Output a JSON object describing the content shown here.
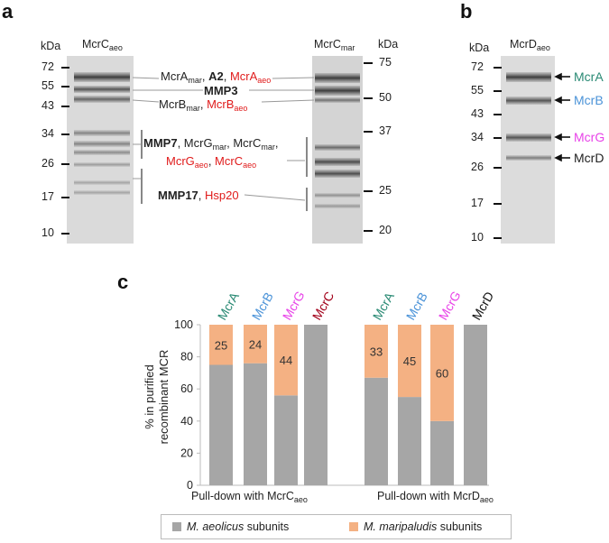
{
  "panel_a": {
    "letter": "a",
    "unit_left": "kDa",
    "unit_right": "kDa",
    "lane_left": {
      "main": "McrC",
      "sub": "aeo"
    },
    "lane_right": {
      "main": "McrC",
      "sub": "mar"
    },
    "ladder_left": [
      "72",
      "55",
      "43",
      "34",
      "26",
      "17",
      "10"
    ],
    "ladder_right": [
      "75",
      "50",
      "37",
      "25",
      "20"
    ],
    "annotations": {
      "row1": {
        "a_main": "McrA",
        "a_sub": "mar",
        "sep1": ", ",
        "bold": "A2",
        "sep2": ", ",
        "red_main": "McrA",
        "red_sub": "aeo"
      },
      "row2": {
        "bold": "MMP3"
      },
      "row3": {
        "a_main": "McrB",
        "a_sub": "mar",
        "sep": ", ",
        "red_main": "McrB",
        "red_sub": "aeo"
      },
      "row4": {
        "bold": "MMP7",
        "sep1": ", ",
        "g_main": "McrG",
        "g_sub": "mar",
        "sep2": ", ",
        "c_main": "McrC",
        "c_sub": "mar",
        "sep3": ","
      },
      "row5": {
        "r1_main": "McrG",
        "r1_sub": "aeo",
        "sep": ", ",
        "r2_main": "McrC",
        "r2_sub": "aeo"
      },
      "row6": {
        "bold": "MMP17",
        "sep": ", ",
        "red": "Hsp20"
      }
    }
  },
  "panel_b": {
    "letter": "b",
    "unit": "kDa",
    "lane": {
      "main": "McrD",
      "sub": "aeo"
    },
    "ladder": [
      "72",
      "55",
      "43",
      "34",
      "26",
      "17",
      "10"
    ],
    "bands": [
      "McrA",
      "McrB",
      "McrG",
      "McrD"
    ],
    "band_colors": {
      "McrA": "#2a8a74",
      "McrB": "#4b93d8",
      "McrG": "#e843e8",
      "McrD": "#111111"
    }
  },
  "panel_c": {
    "letter": "c",
    "ylabel_line1": "% in purified",
    "ylabel_line2": "recombinant MCR",
    "yticks": [
      "0",
      "20",
      "40",
      "60",
      "80",
      "100"
    ],
    "group1_label": {
      "main": "Pull-down with McrC",
      "sub": "aeo"
    },
    "group2_label": {
      "main": "Pull-down with McrD",
      "sub": "aeo"
    },
    "legend": {
      "aeo_italic": "M. aeolicus",
      "aeo_rest": " subunits",
      "mar_italic": "M. maripaludis",
      "mar_rest": " subunits"
    }
  },
  "chart_data": {
    "type": "bar",
    "stacked": true,
    "ylabel": "% in purified recombinant MCR",
    "ylim": [
      0,
      100
    ],
    "yticks": [
      0,
      20,
      40,
      60,
      80,
      100
    ],
    "groups": [
      "Pull-down with McrCaeo",
      "Pull-down with McrDaeo"
    ],
    "categories": [
      "McrA",
      "McrB",
      "McrG",
      "McrC",
      "McrA",
      "McrB",
      "McrG",
      "McrD"
    ],
    "category_colors": [
      "#2a8a74",
      "#4b93d8",
      "#e843e8",
      "#a2001a",
      "#2a8a74",
      "#4b93d8",
      "#e843e8",
      "#111111"
    ],
    "series": [
      {
        "name": "M. aeolicus subunits",
        "color": "#a6a6a6",
        "values": [
          75,
          76,
          56,
          100,
          67,
          55,
          40,
          100
        ]
      },
      {
        "name": "M. maripaludis subunits",
        "color": "#f4b183",
        "values": [
          25,
          24,
          44,
          0,
          33,
          45,
          60,
          0
        ]
      }
    ],
    "data_labels": [
      "25",
      "24",
      "44",
      "",
      "33",
      "45",
      "60",
      ""
    ],
    "legend_position": "bottom"
  }
}
